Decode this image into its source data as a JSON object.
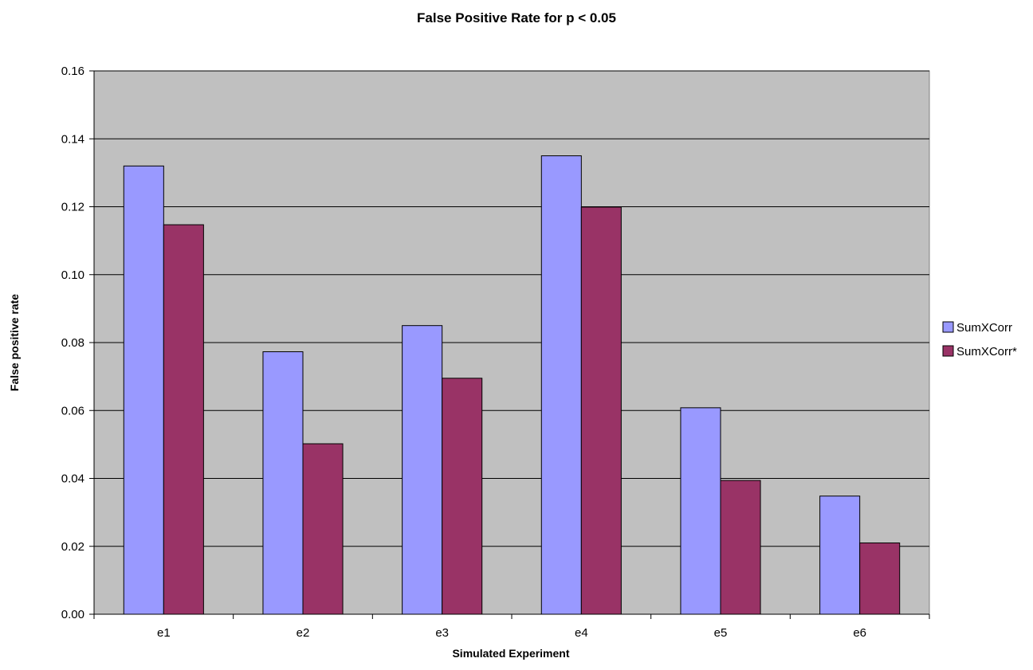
{
  "chart_data": {
    "type": "bar",
    "title": "False Positive Rate for p < 0.05",
    "xlabel": "Simulated Experiment",
    "ylabel": "False positive rate",
    "categories": [
      "e1",
      "e2",
      "e3",
      "e4",
      "e5",
      "e6"
    ],
    "series": [
      {
        "name": "SumXCorr",
        "color": "#9999ff",
        "values": [
          0.132,
          0.0773,
          0.085,
          0.135,
          0.0608,
          0.0348
        ]
      },
      {
        "name": "SumXCorr*",
        "color": "#993366",
        "values": [
          0.1147,
          0.0502,
          0.0695,
          0.1199,
          0.0394,
          0.021
        ]
      }
    ],
    "ylim": [
      0,
      0.16
    ],
    "yticks": [
      "0.00",
      "0.02",
      "0.04",
      "0.06",
      "0.08",
      "0.10",
      "0.12",
      "0.14",
      "0.16"
    ],
    "grid": true,
    "plot_background": "#c0c0c0",
    "legend_position": "right"
  }
}
